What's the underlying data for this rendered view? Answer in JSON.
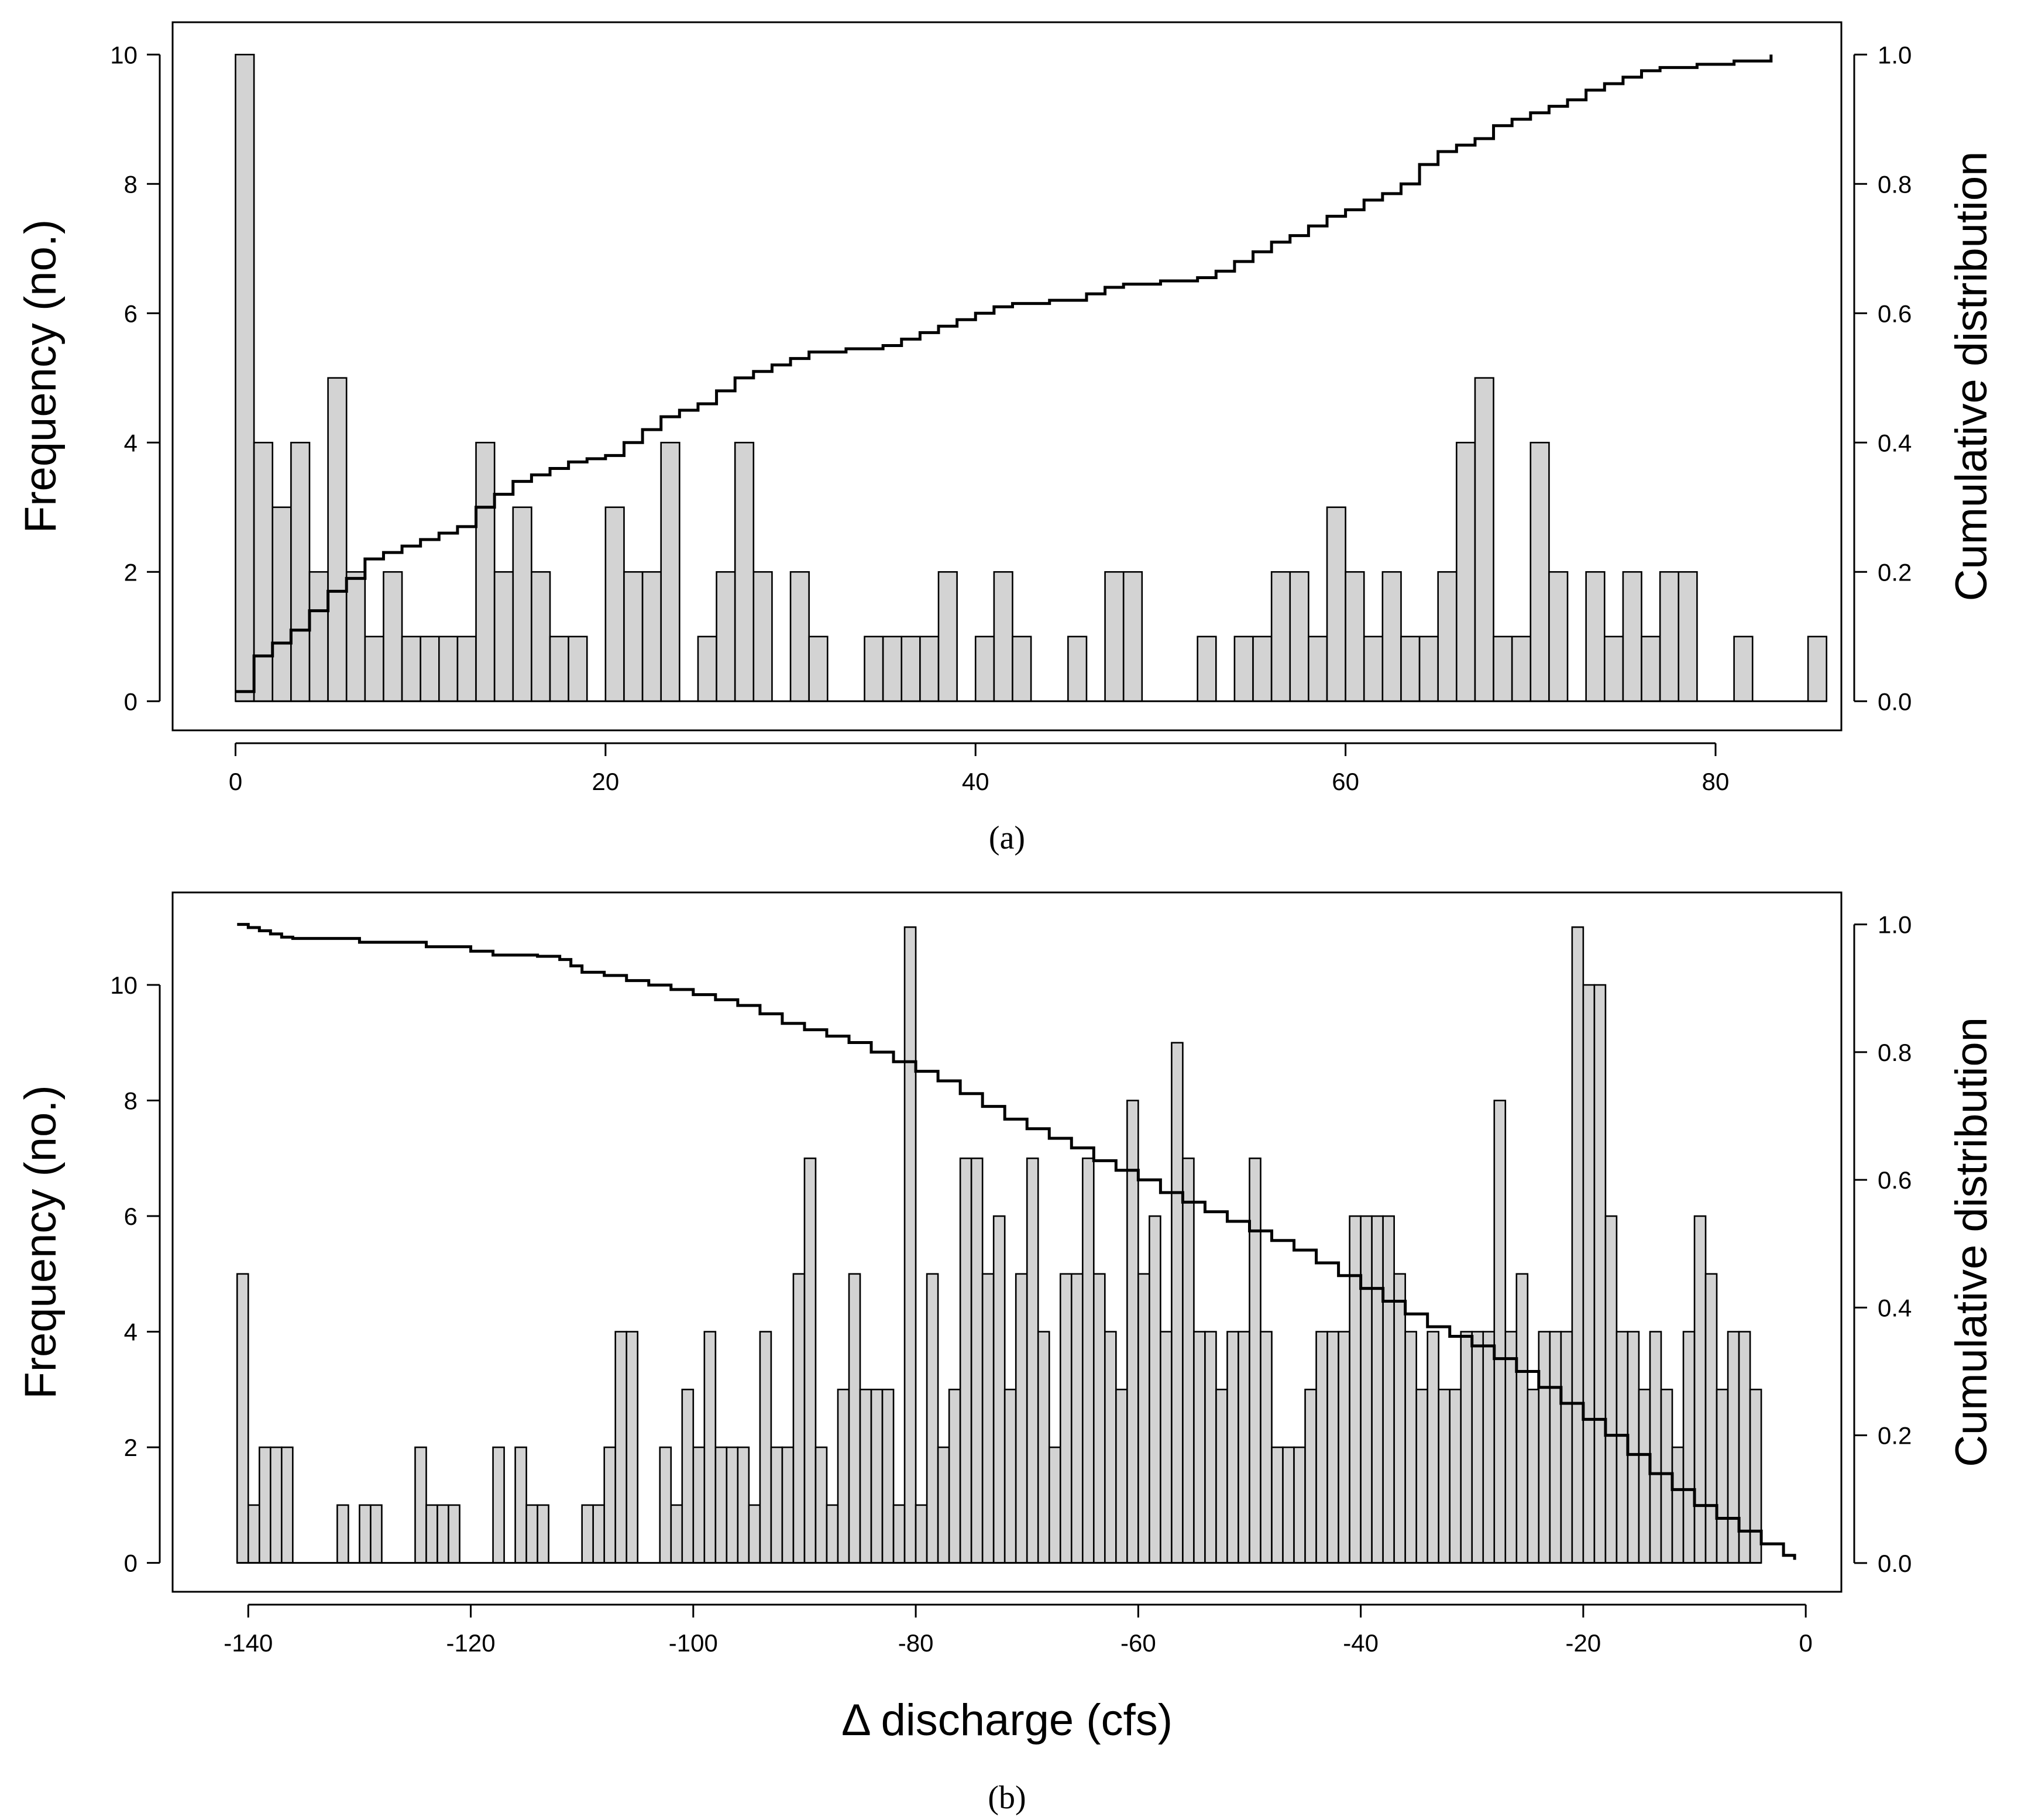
{
  "chart_data": [
    {
      "type": "bar",
      "panel_label": "(a)",
      "xlabel": "",
      "ylabel": "Frequency (no.)",
      "y2label": "Cumulative distribution",
      "xlim": [
        -3.4,
        86.8
      ],
      "ylim": [
        -0.45,
        10.5
      ],
      "y2lim": [
        -0.045,
        1.05
      ],
      "xticks": [
        0,
        20,
        40,
        60,
        80
      ],
      "yticks": [
        0,
        2,
        4,
        6,
        8,
        10
      ],
      "y2ticks": [
        0.0,
        0.2,
        0.4,
        0.6,
        0.8,
        1.0
      ],
      "bin_start": 0,
      "bin_width": 1,
      "values": [
        10,
        4,
        3,
        4,
        2,
        5,
        2,
        1,
        2,
        1,
        1,
        1,
        1,
        4,
        2,
        3,
        2,
        1,
        1,
        0,
        3,
        2,
        2,
        4,
        0,
        1,
        2,
        4,
        2,
        0,
        2,
        1,
        0,
        0,
        1,
        1,
        1,
        1,
        2,
        0,
        1,
        2,
        1,
        0,
        0,
        1,
        0,
        2,
        2,
        0,
        0,
        0,
        1,
        0,
        1,
        1,
        2,
        2,
        1,
        3,
        2,
        1,
        2,
        1,
        1,
        2,
        4,
        5,
        1,
        1,
        4,
        2,
        0,
        2,
        1,
        2,
        1,
        2,
        2,
        0,
        0,
        1,
        0,
        0,
        0,
        1
      ],
      "cdf": [
        [
          0,
          0.015
        ],
        [
          1,
          0.07
        ],
        [
          2,
          0.09
        ],
        [
          3,
          0.11
        ],
        [
          4,
          0.14
        ],
        [
          5,
          0.17
        ],
        [
          6,
          0.19
        ],
        [
          7,
          0.22
        ],
        [
          8,
          0.23
        ],
        [
          9,
          0.24
        ],
        [
          10,
          0.25
        ],
        [
          11,
          0.26
        ],
        [
          12,
          0.27
        ],
        [
          13,
          0.3
        ],
        [
          14,
          0.32
        ],
        [
          15,
          0.34
        ],
        [
          16,
          0.35
        ],
        [
          17,
          0.36
        ],
        [
          18,
          0.37
        ],
        [
          19,
          0.375
        ],
        [
          20,
          0.38
        ],
        [
          21,
          0.4
        ],
        [
          22,
          0.42
        ],
        [
          23,
          0.44
        ],
        [
          24,
          0.45
        ],
        [
          25,
          0.46
        ],
        [
          26,
          0.48
        ],
        [
          27,
          0.5
        ],
        [
          28,
          0.51
        ],
        [
          29,
          0.52
        ],
        [
          30,
          0.53
        ],
        [
          31,
          0.54
        ],
        [
          33,
          0.545
        ],
        [
          35,
          0.55
        ],
        [
          36,
          0.56
        ],
        [
          37,
          0.57
        ],
        [
          38,
          0.58
        ],
        [
          39,
          0.59
        ],
        [
          40,
          0.6
        ],
        [
          41,
          0.61
        ],
        [
          42,
          0.615
        ],
        [
          44,
          0.62
        ],
        [
          46,
          0.63
        ],
        [
          47,
          0.64
        ],
        [
          48,
          0.645
        ],
        [
          50,
          0.65
        ],
        [
          52,
          0.655
        ],
        [
          53,
          0.665
        ],
        [
          54,
          0.68
        ],
        [
          55,
          0.695
        ],
        [
          56,
          0.71
        ],
        [
          57,
          0.72
        ],
        [
          58,
          0.735
        ],
        [
          59,
          0.75
        ],
        [
          60,
          0.76
        ],
        [
          61,
          0.775
        ],
        [
          62,
          0.785
        ],
        [
          63,
          0.8
        ],
        [
          64,
          0.83
        ],
        [
          65,
          0.85
        ],
        [
          66,
          0.86
        ],
        [
          67,
          0.87
        ],
        [
          68,
          0.89
        ],
        [
          69,
          0.9
        ],
        [
          70,
          0.91
        ],
        [
          71,
          0.92
        ],
        [
          72,
          0.93
        ],
        [
          73,
          0.945
        ],
        [
          74,
          0.955
        ],
        [
          75,
          0.965
        ],
        [
          76,
          0.975
        ],
        [
          77,
          0.98
        ],
        [
          79,
          0.985
        ],
        [
          81,
          0.99
        ],
        [
          83,
          1.0
        ]
      ]
    },
    {
      "type": "bar",
      "panel_label": "(b)",
      "xlabel": "Δ discharge (cfs)",
      "ylabel": "Frequency (no.)",
      "y2label": "Cumulative distribution",
      "xlim": [
        -146.8,
        3.2
      ],
      "ylim": [
        -0.5,
        11.6
      ],
      "y2lim": [
        -0.045,
        1.05
      ],
      "xticks": [
        -140,
        -120,
        -100,
        -80,
        -60,
        -40,
        -20,
        0
      ],
      "yticks": [
        0,
        2,
        4,
        6,
        8,
        10
      ],
      "y2ticks": [
        0.0,
        0.2,
        0.4,
        0.6,
        0.8,
        1.0
      ],
      "bin_start": -141,
      "bin_width": 1,
      "values": [
        5,
        1,
        2,
        2,
        2,
        0,
        0,
        0,
        0,
        1,
        0,
        1,
        1,
        0,
        0,
        0,
        2,
        1,
        1,
        1,
        0,
        0,
        0,
        2,
        0,
        2,
        1,
        1,
        0,
        0,
        0,
        1,
        1,
        2,
        4,
        4,
        0,
        0,
        2,
        1,
        3,
        2,
        4,
        2,
        2,
        2,
        1,
        4,
        2,
        2,
        5,
        7,
        2,
        1,
        3,
        5,
        3,
        3,
        3,
        1,
        11,
        1,
        5,
        2,
        3,
        7,
        7,
        5,
        6,
        3,
        5,
        7,
        4,
        2,
        5,
        5,
        7,
        5,
        4,
        3,
        8,
        5,
        6,
        4,
        9,
        7,
        4,
        4,
        3,
        4,
        4,
        7,
        4,
        2,
        2,
        2,
        3,
        4,
        4,
        4,
        6,
        6,
        6,
        6,
        5,
        4,
        3,
        4,
        3,
        3,
        4,
        4,
        4,
        8,
        4,
        5,
        3,
        4,
        4,
        4,
        11,
        10,
        10,
        6,
        4,
        4,
        3,
        4,
        3,
        2,
        4,
        6,
        5,
        3,
        4,
        4,
        3
      ],
      "cdf": [
        [
          -141,
          1.0
        ],
        [
          -140,
          0.995
        ],
        [
          -139,
          0.99
        ],
        [
          -138,
          0.985
        ],
        [
          -137,
          0.98
        ],
        [
          -136,
          0.978
        ],
        [
          -130,
          0.972
        ],
        [
          -124,
          0.965
        ],
        [
          -120,
          0.958
        ],
        [
          -118,
          0.952
        ],
        [
          -114,
          0.95
        ],
        [
          -112,
          0.945
        ],
        [
          -111,
          0.935
        ],
        [
          -110,
          0.925
        ],
        [
          -108,
          0.92
        ],
        [
          -106,
          0.912
        ],
        [
          -104,
          0.905
        ],
        [
          -102,
          0.898
        ],
        [
          -100,
          0.89
        ],
        [
          -98,
          0.882
        ],
        [
          -96,
          0.873
        ],
        [
          -94,
          0.86
        ],
        [
          -92,
          0.845
        ],
        [
          -90,
          0.835
        ],
        [
          -88,
          0.825
        ],
        [
          -86,
          0.815
        ],
        [
          -84,
          0.8
        ],
        [
          -82,
          0.785
        ],
        [
          -80,
          0.77
        ],
        [
          -78,
          0.755
        ],
        [
          -76,
          0.735
        ],
        [
          -74,
          0.715
        ],
        [
          -72,
          0.695
        ],
        [
          -70,
          0.68
        ],
        [
          -68,
          0.665
        ],
        [
          -66,
          0.65
        ],
        [
          -64,
          0.63
        ],
        [
          -62,
          0.615
        ],
        [
          -60,
          0.6
        ],
        [
          -58,
          0.58
        ],
        [
          -56,
          0.565
        ],
        [
          -54,
          0.55
        ],
        [
          -52,
          0.535
        ],
        [
          -50,
          0.52
        ],
        [
          -48,
          0.505
        ],
        [
          -46,
          0.49
        ],
        [
          -44,
          0.47
        ],
        [
          -42,
          0.45
        ],
        [
          -40,
          0.43
        ],
        [
          -38,
          0.41
        ],
        [
          -36,
          0.39
        ],
        [
          -34,
          0.37
        ],
        [
          -32,
          0.355
        ],
        [
          -30,
          0.34
        ],
        [
          -28,
          0.32
        ],
        [
          -26,
          0.3
        ],
        [
          -24,
          0.275
        ],
        [
          -22,
          0.25
        ],
        [
          -20,
          0.225
        ],
        [
          -18,
          0.2
        ],
        [
          -16,
          0.17
        ],
        [
          -14,
          0.14
        ],
        [
          -12,
          0.115
        ],
        [
          -10,
          0.09
        ],
        [
          -8,
          0.07
        ],
        [
          -6,
          0.05
        ],
        [
          -4,
          0.03
        ],
        [
          -2,
          0.012
        ],
        [
          -1,
          0.005
        ]
      ]
    }
  ]
}
